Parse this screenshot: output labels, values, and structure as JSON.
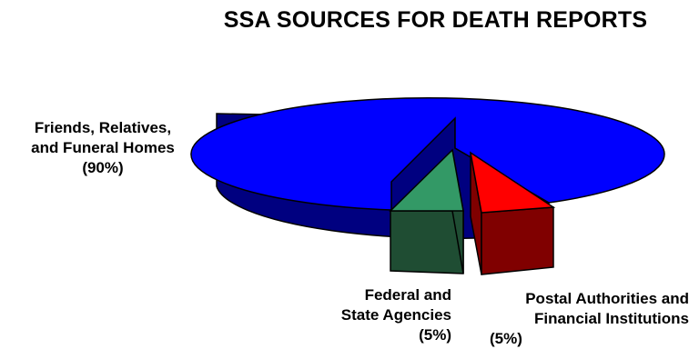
{
  "chart_data": {
    "type": "pie",
    "style": "3d-exploded",
    "title": "SSA SOURCES FOR DEATH REPORTS",
    "slices": [
      {
        "label": "Friends, Relatives, and Funeral Homes",
        "label_lines": [
          "Friends, Relatives,",
          "and Funeral Homes"
        ],
        "value": 90,
        "value_label": "(90%)",
        "color": "#0000ff",
        "side_color": "#000080"
      },
      {
        "label": "Postal Authorities and Financial Institutions",
        "label_lines": [
          "Postal Authorities and",
          "Financial Institutions"
        ],
        "value": 5,
        "value_label": "(5%)",
        "color": "#ff0000",
        "side_color": "#800000"
      },
      {
        "label": "Federal and State Agencies",
        "label_lines": [
          "Federal and",
          "State Agencies"
        ],
        "value": 5,
        "value_label": "(5%)",
        "color": "#339966",
        "side_color": "#1f4d33"
      }
    ]
  }
}
